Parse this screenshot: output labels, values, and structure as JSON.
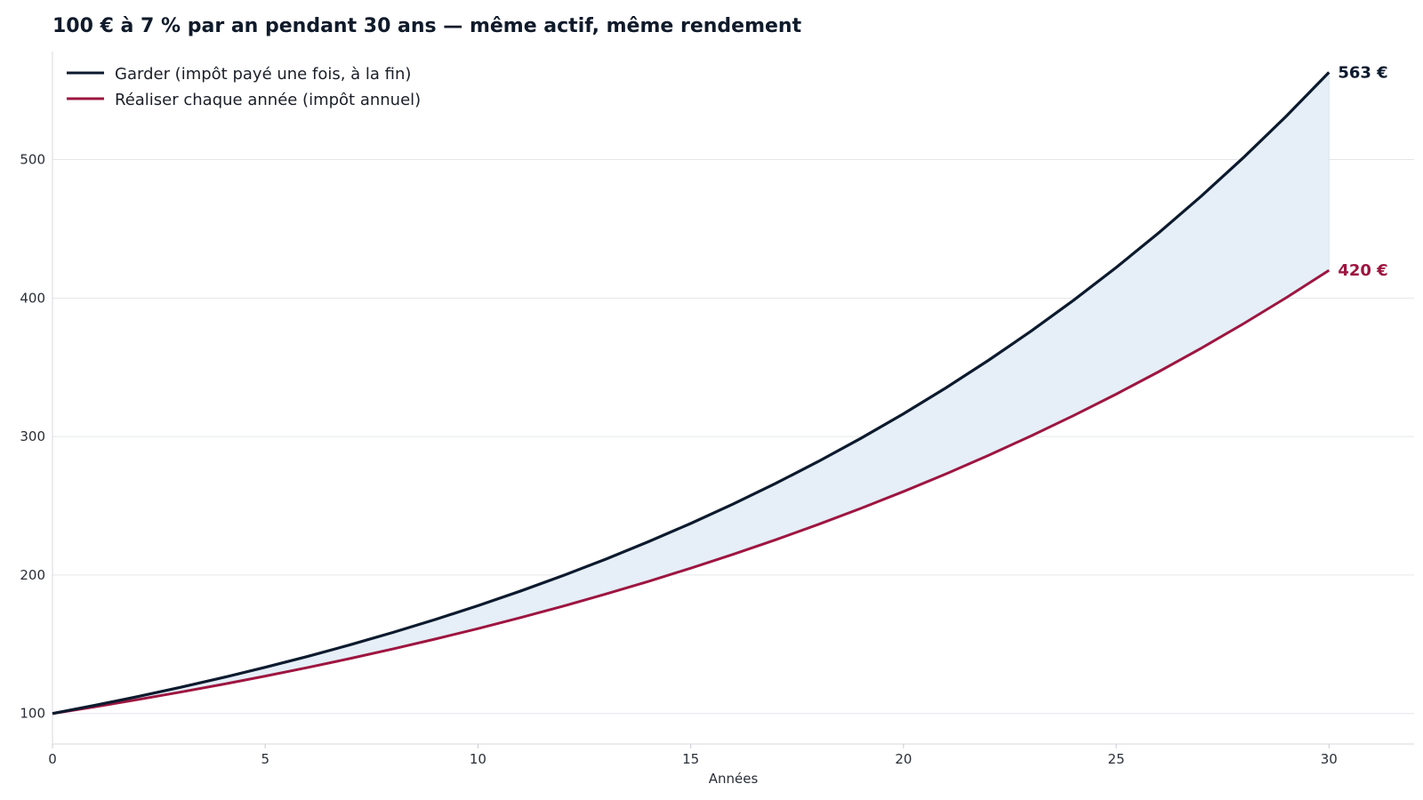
{
  "chart_data": {
    "type": "line",
    "title": "100 € à 7 % par an pendant 30 ans — même actif, même rendement",
    "xlabel": "Années",
    "ylabel": "",
    "xlim": [
      0,
      32
    ],
    "ylim": [
      78,
      578
    ],
    "x_ticks": [
      0,
      5,
      10,
      15,
      20,
      25,
      30
    ],
    "y_ticks": [
      100,
      200,
      300,
      400,
      500
    ],
    "grid": "horizontal",
    "legend_position": "top-left",
    "fill_between": true,
    "colors": {
      "keep": "#0c1a2e",
      "realize": "#9e1540",
      "fill": "#e6eef7",
      "grid": "#e3e6ea"
    },
    "x": [
      0,
      1,
      2,
      3,
      4,
      5,
      6,
      7,
      8,
      9,
      10,
      11,
      12,
      13,
      14,
      15,
      16,
      17,
      18,
      19,
      20,
      21,
      22,
      23,
      24,
      25,
      26,
      27,
      28,
      29,
      30
    ],
    "series": [
      {
        "name": "Garder (impôt payé une fois, à la fin)",
        "end_label": "563 €",
        "values": [
          100,
          106.2,
          112.8,
          119.7,
          127.1,
          134.9,
          143.1,
          151.9,
          161.3,
          171.2,
          181.7,
          192.9,
          204.7,
          217.3,
          230.6,
          244.8,
          259.8,
          275.8,
          292.7,
          310.7,
          329.8,
          350.1,
          371.6,
          394.4,
          418.7,
          444.4,
          471.7,
          500.7,
          531.5,
          564.2,
          563
        ],
        "values_note": ""
      },
      {
        "name": "Réaliser chaque année (impôt annuel)",
        "end_label": "420 €",
        "values": [
          100,
          104.9,
          110.0,
          115.4,
          121.1,
          127.0,
          133.2,
          139.8,
          146.6,
          153.8,
          161.3,
          169.2,
          177.5,
          186.2,
          195.3,
          204.9,
          214.9,
          225.5,
          236.5,
          248.1,
          260.3,
          273.0,
          286.4,
          300.4,
          315.2,
          330.6,
          346.8,
          363.8,
          381.6,
          400.4,
          420
        ]
      }
    ]
  }
}
